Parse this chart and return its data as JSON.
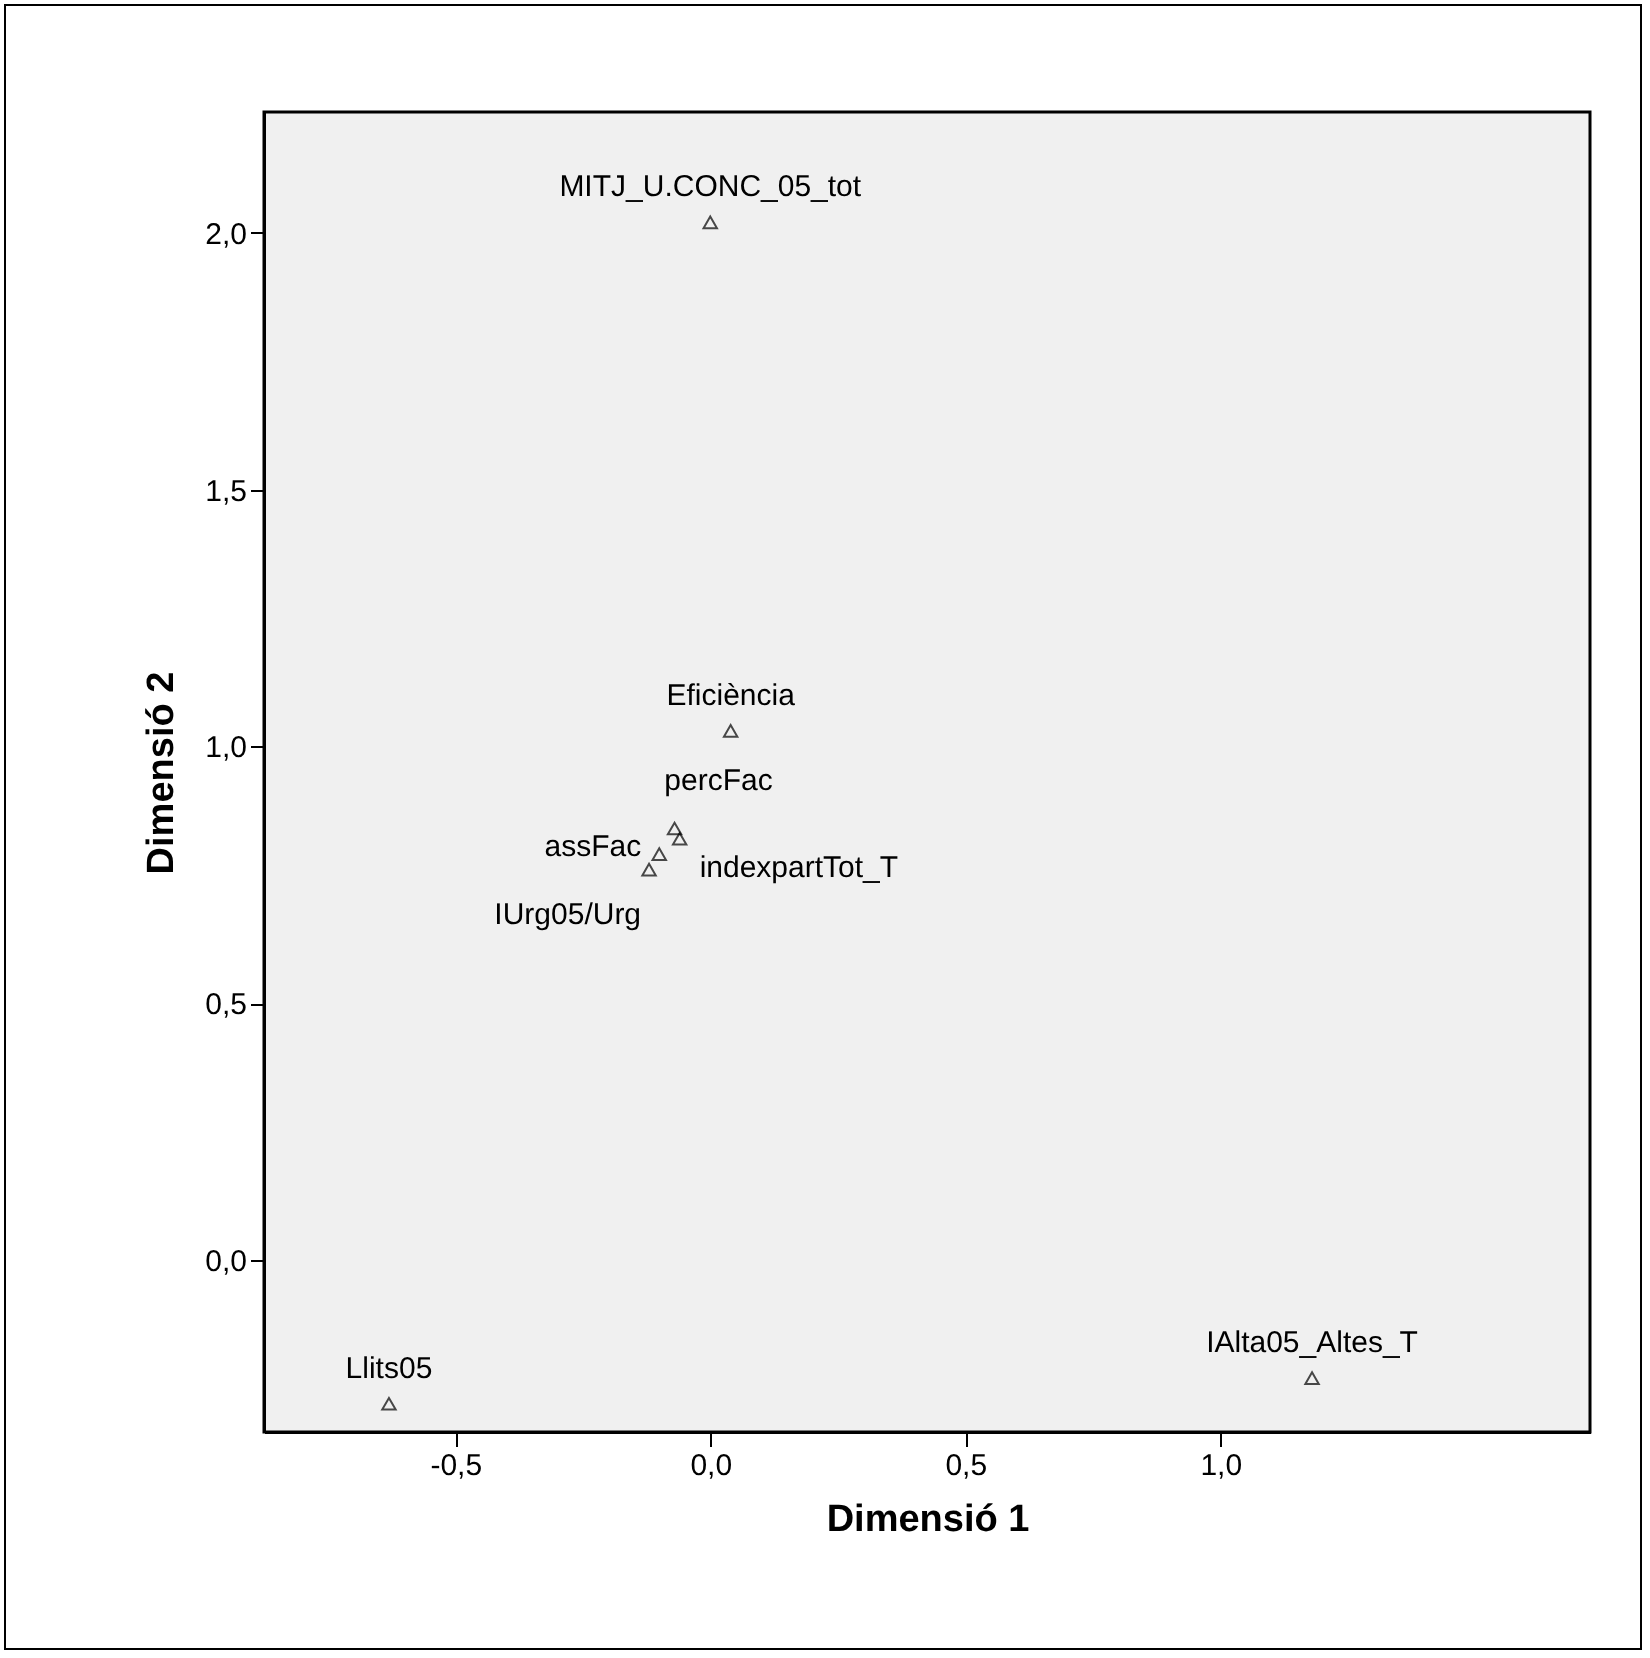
{
  "chart_data": {
    "type": "scatter",
    "xlabel": "Dimensió 1",
    "ylabel": "Dimensió 2",
    "series": [
      {
        "color": "#000000",
        "x": [
          0.0,
          0.04,
          -0.07,
          -0.06,
          -0.1,
          -0.12,
          -0.63,
          1.18
        ],
        "values": [
          2.02,
          1.03,
          0.84,
          0.82,
          0.79,
          0.76,
          -0.28,
          -0.23
        ]
      }
    ],
    "annotations": [
      {
        "text": "MITJ_U.CONC_05_tot",
        "x": 0.0,
        "y": 2.02
      },
      {
        "text": "Eficiència",
        "x": 0.04,
        "y": 1.03
      },
      {
        "text": "percFac",
        "x": -0.07,
        "y": 0.84
      },
      {
        "text": "indexpartTot_T",
        "x": -0.06,
        "y": 0.82
      },
      {
        "text": "assFac",
        "x": -0.1,
        "y": 0.79
      },
      {
        "text": "IUrg05/Urg",
        "x": -0.12,
        "y": 0.76
      },
      {
        "text": "Llits05",
        "x": -0.63,
        "y": -0.28
      },
      {
        "text": "IAlta05_Altes_T",
        "x": 1.18,
        "y": -0.23
      }
    ],
    "xlim": [
      -0.875,
      1.725
    ],
    "ylim": [
      -0.335,
      2.235
    ],
    "xticks": [
      {
        "value": -0.5,
        "label": "-0,5"
      },
      {
        "value": 0,
        "label": "0,0"
      },
      {
        "value": 0.5,
        "label": "0,5"
      },
      {
        "value": 1,
        "label": "1,0"
      }
    ],
    "yticks": [
      {
        "value": 0,
        "label": "0,0"
      },
      {
        "value": 0.5,
        "label": "0,5"
      },
      {
        "value": 1,
        "label": "1,0"
      },
      {
        "value": 1.5,
        "label": "1,5"
      },
      {
        "value": 2,
        "label": "2,0"
      }
    ],
    "marker": "triangle",
    "grid": false
  }
}
